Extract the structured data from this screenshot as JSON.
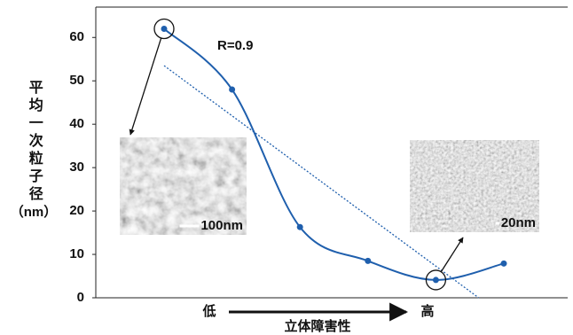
{
  "chart_data": {
    "type": "line",
    "categories": [
      null,
      null,
      null,
      null,
      null,
      null
    ],
    "series": [
      {
        "color": "#1f5fad",
        "values": [
          62,
          48,
          16.3,
          8.5,
          4.1,
          7.9
        ]
      }
    ],
    "ylim": [
      0,
      67
    ],
    "yticks": [
      0,
      10,
      20,
      30,
      40,
      50,
      60
    ],
    "y_label": "平均一次粒子径",
    "y_unit": "（nm）",
    "x_low": "低",
    "x_high": "高",
    "x_label": "立体障害性",
    "annotation": "R=0.9",
    "trend_line": {
      "x": [
        0,
        4.63
      ],
      "values": [
        53.5,
        0
      ],
      "color": "#1f5fad"
    },
    "images": [
      {
        "point": 0,
        "scale_label": "100nm"
      },
      {
        "point": 4,
        "scale_label": "20nm"
      }
    ]
  }
}
